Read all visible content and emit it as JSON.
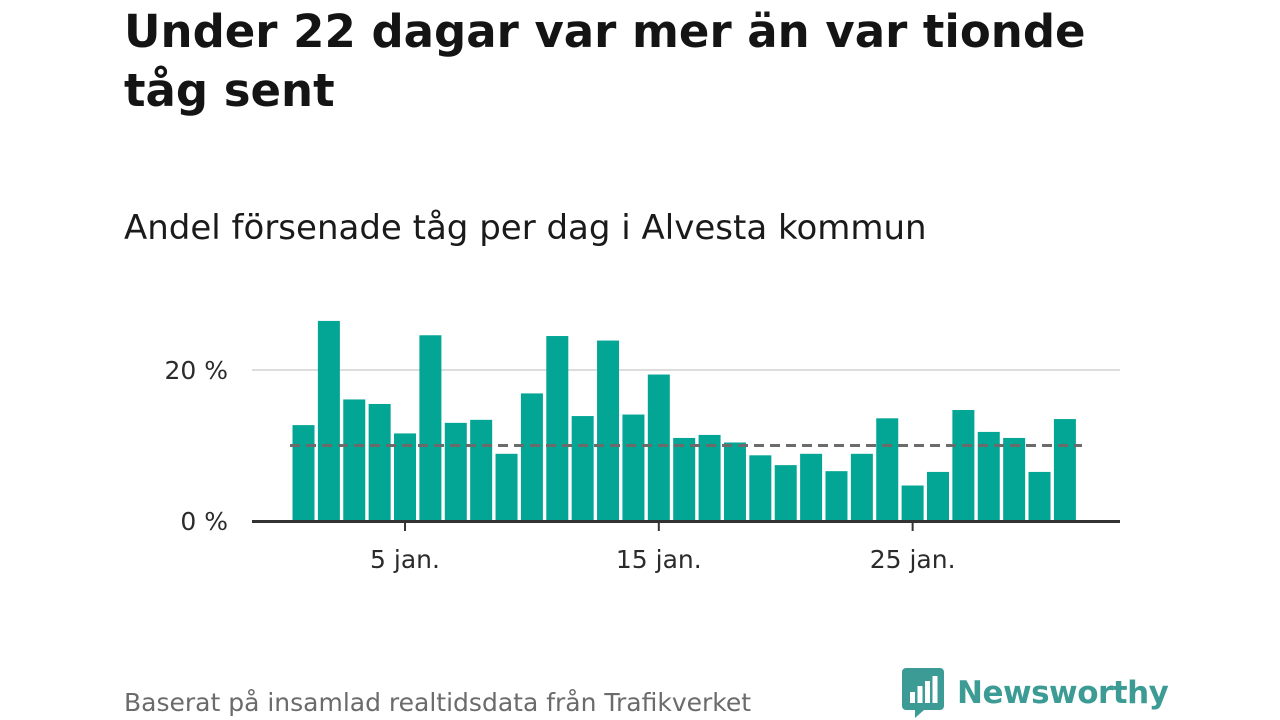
{
  "title": "Under 22 dagar var mer än var tionde tåg sent",
  "subtitle": "Andel försenade tåg per dag i Alvesta kommun",
  "footer": {
    "source": "Baserat på insamlad realtidsdata från Trafikverket",
    "brand": "Newsworthy"
  },
  "colors": {
    "bar": "#03a595",
    "reference_line": "#6b6b6b",
    "grid": "#dddddd",
    "axis": "#333333",
    "brand": "#3d9b95"
  },
  "chart_data": {
    "type": "bar",
    "x": [
      1,
      2,
      3,
      4,
      5,
      6,
      7,
      8,
      9,
      10,
      11,
      12,
      13,
      14,
      15,
      16,
      17,
      18,
      19,
      20,
      21,
      22,
      23,
      24,
      25,
      26,
      27,
      28,
      29,
      30,
      31
    ],
    "values": [
      12.7,
      26.5,
      16.1,
      15.5,
      11.6,
      24.6,
      13.0,
      13.4,
      8.9,
      16.9,
      24.5,
      13.9,
      23.9,
      14.1,
      19.4,
      11.0,
      11.4,
      10.4,
      8.7,
      7.4,
      8.9,
      6.6,
      8.9,
      13.6,
      4.7,
      6.5,
      14.7,
      11.8,
      11.0,
      6.5,
      13.5
    ],
    "reference_line": 10,
    "ylim": [
      0,
      27
    ],
    "yticks": [
      0,
      20
    ],
    "ytick_labels": [
      "0 %",
      "20 %"
    ],
    "xticks": [
      5,
      15,
      25
    ],
    "xtick_labels": [
      "5 jan.",
      "15 jan.",
      "25 jan."
    ],
    "grid": "horizontal"
  }
}
